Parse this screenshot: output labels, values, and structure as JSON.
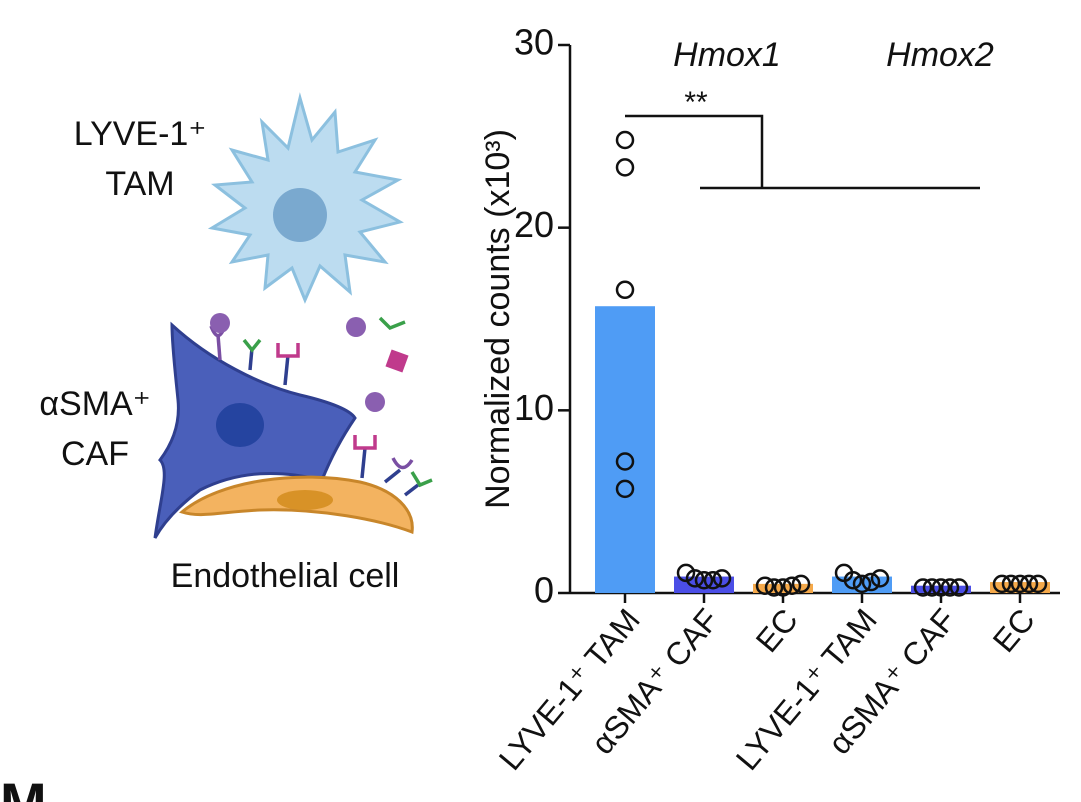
{
  "chart_data": {
    "type": "bar",
    "ylabel": "Normalized counts (x10³)",
    "group_labels": [
      "Hmox1",
      "Hmox2"
    ],
    "significance": "**",
    "categories": [
      "LYVE-1⁺ TAM",
      "αSMA⁺ CAF",
      "EC",
      "LYVE-1⁺ TAM",
      "αSMA⁺ CAF",
      "EC"
    ],
    "values": [
      15.7,
      0.9,
      0.5,
      0.9,
      0.4,
      0.6
    ],
    "colors": [
      "#4f9cf5",
      "#4b4ee6",
      "#f5a94a",
      "#4f9cf5",
      "#4b4ee6",
      "#f5a94a"
    ],
    "points": [
      [
        24.8,
        23.3,
        16.6,
        7.2,
        5.7
      ],
      [
        1.1,
        0.8,
        0.7,
        0.7,
        0.8
      ],
      [
        0.4,
        0.3,
        0.3,
        0.4,
        0.5
      ],
      [
        1.1,
        0.7,
        0.5,
        0.6,
        0.8
      ],
      [
        0.3,
        0.3,
        0.3,
        0.3,
        0.3
      ],
      [
        0.5,
        0.5,
        0.5,
        0.5,
        0.5
      ]
    ],
    "ylim": [
      0,
      30
    ],
    "yticks": [
      0,
      10,
      20,
      30
    ]
  },
  "illustration": {
    "tam_label": [
      "LYVE-1⁺",
      "TAM"
    ],
    "caf_label": [
      "αSMA⁺",
      "CAF"
    ],
    "ec_label": "Endothelial cell"
  },
  "panel_label": "M"
}
